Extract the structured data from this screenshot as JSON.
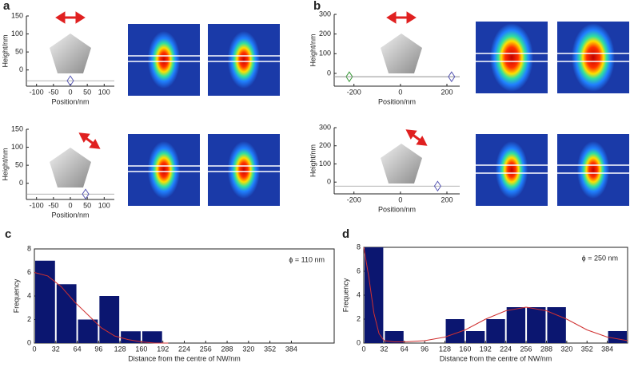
{
  "chart_data": [
    {
      "type": "scatter",
      "panel": "a",
      "xlabel": "Position/nm",
      "ylabel": "Height/nm",
      "xlim": [
        -130,
        130
      ],
      "ylim": [
        -45,
        150
      ],
      "xticks": [
        -100,
        -50,
        0,
        50,
        100
      ],
      "yticks": [
        0,
        50,
        100,
        150
      ],
      "x": [
        0
      ],
      "y": [
        -30
      ],
      "colors": [
        "#5a5ab4"
      ]
    },
    {
      "type": "scatter",
      "xlabel": "Position/nm",
      "ylabel": "Height/nm",
      "xlim": [
        -130,
        130
      ],
      "ylim": [
        -45,
        150
      ],
      "xticks": [
        -100,
        -50,
        0,
        50,
        100
      ],
      "yticks": [
        0,
        50,
        100,
        150
      ],
      "x": [
        45
      ],
      "y": [
        -30
      ],
      "colors": [
        "#5a5ab4"
      ]
    },
    {
      "type": "scatter",
      "panel": "b",
      "xlabel": "Position/nm",
      "ylabel": "Height/nm",
      "xlim": [
        -285,
        255
      ],
      "ylim": [
        -65,
        300
      ],
      "xticks": [
        -200,
        0,
        200
      ],
      "yticks": [
        0,
        100,
        200,
        300
      ],
      "x": [
        -220,
        220
      ],
      "y": [
        -17,
        -17
      ],
      "colors": [
        "#3a9a3a",
        "#5a5ab4"
      ]
    },
    {
      "type": "scatter",
      "xlabel": "Position/nm",
      "ylabel": "Height/nm",
      "xlim": [
        -285,
        255
      ],
      "ylim": [
        -65,
        300
      ],
      "xticks": [
        -200,
        0,
        200
      ],
      "yticks": [
        0,
        100,
        200,
        300
      ],
      "x": [
        160
      ],
      "y": [
        -22
      ],
      "colors": [
        "#5a5ab4"
      ]
    },
    {
      "type": "histogram",
      "panel": "c",
      "xlabel": "Distance from the centre of NW/nm",
      "ylabel": "Frequency",
      "annotation": "ϕ = 110 nm",
      "xlim": [
        0,
        448
      ],
      "ylim": [
        0,
        8
      ],
      "xticks": [
        0,
        32,
        64,
        96,
        128,
        160,
        192,
        224,
        256,
        288,
        320,
        352,
        384
      ],
      "yticks": [
        0,
        2,
        4,
        6,
        8
      ],
      "bins": [
        0,
        32,
        64,
        96,
        128,
        160,
        192
      ],
      "values": [
        7,
        5,
        2,
        4,
        1,
        1
      ],
      "color": "#0b1670",
      "curve": {
        "color": "#d03030",
        "x": [
          0,
          20,
          40,
          60,
          80,
          100,
          120,
          140,
          160,
          180,
          200
        ],
        "y": [
          6,
          5.7,
          4.8,
          3.5,
          2.4,
          1.3,
          0.6,
          0.3,
          0.1,
          0,
          0
        ]
      }
    },
    {
      "type": "histogram",
      "panel": "d",
      "xlabel": "Distance from the centre of NW/nm",
      "ylabel": "Frequency",
      "annotation": "ϕ = 250 nm",
      "xlim": [
        0,
        416
      ],
      "ylim": [
        0,
        8
      ],
      "xticks": [
        0,
        32,
        64,
        96,
        128,
        160,
        192,
        224,
        256,
        288,
        320,
        352,
        384
      ],
      "yticks": [
        0,
        2,
        4,
        6,
        8
      ],
      "bins": [
        0,
        32,
        64,
        96,
        128,
        160,
        192,
        224,
        256,
        288,
        320,
        352,
        384,
        416
      ],
      "values": [
        8,
        1,
        0,
        0,
        2,
        1,
        2,
        3,
        3,
        3,
        0,
        0,
        1
      ],
      "color": "#0b1670",
      "curve": {
        "color": "#d03030",
        "x": [
          0,
          8,
          16,
          24,
          32,
          48,
          64,
          96,
          128,
          160,
          192,
          224,
          256,
          288,
          320,
          352,
          384,
          416
        ],
        "y": [
          8,
          5.5,
          2.5,
          0.8,
          0.2,
          0.1,
          0.1,
          0.2,
          0.5,
          1.1,
          2,
          2.7,
          3,
          2.7,
          2,
          1.1,
          0.5,
          0.2
        ]
      }
    }
  ]
}
